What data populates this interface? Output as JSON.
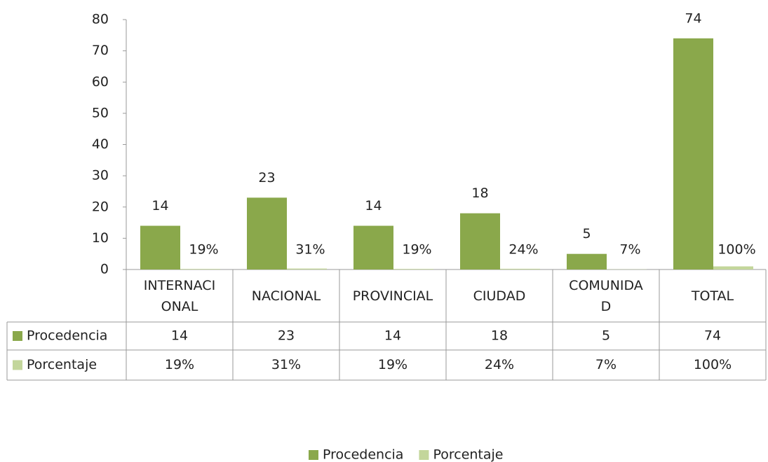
{
  "chart_data": {
    "type": "bar",
    "categories": [
      "INTERNACIONAL",
      "NACIONAL",
      "PROVINCIAL",
      "CIUDAD",
      "COMUNIDAD",
      "TOTAL"
    ],
    "series": [
      {
        "name": "Procedencia",
        "color": "#8aa84b",
        "values": [
          14,
          23,
          14,
          18,
          5,
          74
        ]
      },
      {
        "name": "Porcentaje",
        "color": "#c3d69b",
        "values": [
          0.19,
          0.31,
          0.19,
          0.24,
          0.07,
          1
        ],
        "value_labels": [
          "19%",
          "31%",
          "19%",
          "24%",
          "7%",
          "100%"
        ]
      }
    ],
    "ylim": [
      0,
      80
    ],
    "yticks": [
      0,
      10,
      20,
      30,
      40,
      50,
      60,
      70,
      80
    ],
    "grid": false,
    "legend": "bottom"
  }
}
